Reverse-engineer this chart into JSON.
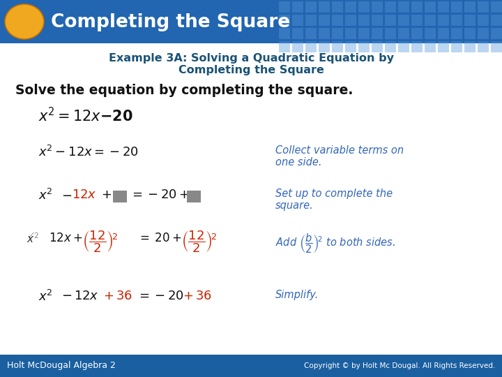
{
  "title_bar_color": "#2265b0",
  "title_text": "Completing the Square",
  "title_text_color": "#ffffff",
  "oval_color": "#f0a820",
  "bg_color": "#ffffff",
  "footer_bar_color": "#1a5fa0",
  "footer_left": "Holt McDougal Algebra 2",
  "footer_right": "Copyright © by Holt Mc Dougal. All Rights Reserved.",
  "footer_text_color": "#ffffff",
  "example_title_line1": "Example 3A: Solving a Quadratic Equation by",
  "example_title_line2": "Completing the Square",
  "example_title_color": "#1a5276",
  "solve_text": "Solve the equation by completing the square.",
  "blue_italic_color": "#3366bb",
  "red_color": "#cc2200",
  "gray_color": "#888888",
  "black": "#111111",
  "grid_tile_color": "#4488cc"
}
